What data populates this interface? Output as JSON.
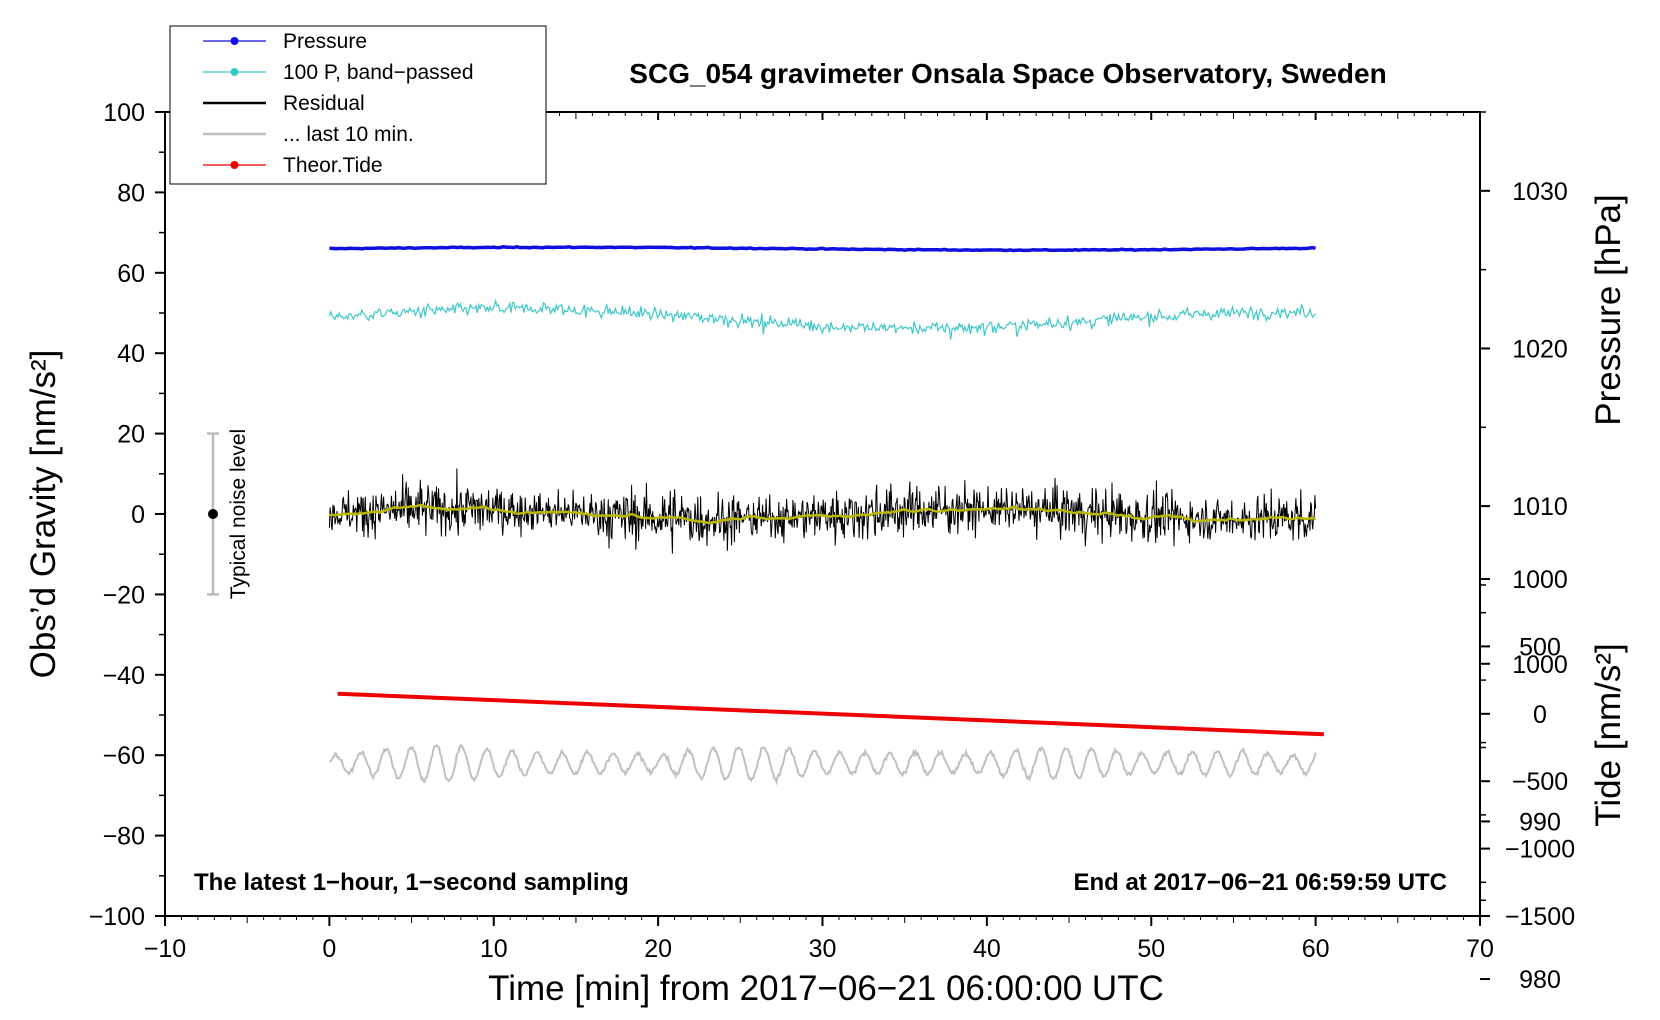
{
  "chart_data": {
    "type": "line",
    "title": "SCG_054 gravimeter Onsala Space Observatory, Sweden",
    "xlabel": "Time [min] from 2017−06−21 06:00:00 UTC",
    "ylabel_left": "Obs’d Gravity [nm/s²]",
    "ylabel_pressure": "Pressure [hPa]",
    "ylabel_tide": "Tide [nm/s²]",
    "xlim": [
      -10,
      70
    ],
    "ylim": [
      -100,
      100
    ],
    "pressure_lim": [
      984,
      1035
    ],
    "tide_lim": [
      -1500,
      1500
    ],
    "x_ticks": [
      "−10",
      "0",
      "10",
      "20",
      "30",
      "40",
      "50",
      "60",
      "70"
    ],
    "y_ticks": [
      "100",
      "80",
      "60",
      "40",
      "20",
      "0",
      "−20",
      "−40",
      "−60",
      "−80",
      "−100"
    ],
    "pressure_ticks": [
      "1030",
      "1020",
      "1010",
      "1000",
      "990",
      "980"
    ],
    "tide_ticks": [
      "1000",
      "500",
      "0",
      "−500",
      "−1000",
      "−1500"
    ],
    "noise_label": "Typical noise level",
    "noise_range": [
      -20,
      20
    ],
    "footer_left": "The latest 1−hour, 1−second sampling",
    "footer_right": "End at 2017−06−21 06:59:59 UTC",
    "legend": [
      "Pressure",
      "100 P, band−passed",
      "Residual",
      "... last 10 min.",
      "Theor.Tide"
    ],
    "colors": {
      "pressure": "#1010e0",
      "bandpassed": "#3fc8c8",
      "residual": "#000000",
      "smooth": "#b8b800",
      "last10": "#c0c0c0",
      "tide": "#ee0000"
    },
    "series": [
      {
        "name": "Pressure",
        "axis": "left",
        "x": [
          0,
          60
        ],
        "values": [
          66,
          66
        ]
      },
      {
        "name": "100 P, band−passed",
        "axis": "left",
        "x": [
          0,
          60
        ],
        "values": [
          49,
          48
        ]
      },
      {
        "name": "Residual",
        "axis": "left",
        "x": [
          0,
          60
        ],
        "values": [
          0,
          0
        ]
      },
      {
        "name": "... last 10 min.",
        "axis": "left",
        "x": [
          0,
          60
        ],
        "values": [
          -62,
          -62
        ]
      },
      {
        "name": "Theor.Tide",
        "axis": "left",
        "x": [
          0.5,
          60.5
        ],
        "values": [
          -44.7,
          -54.8
        ]
      }
    ]
  }
}
